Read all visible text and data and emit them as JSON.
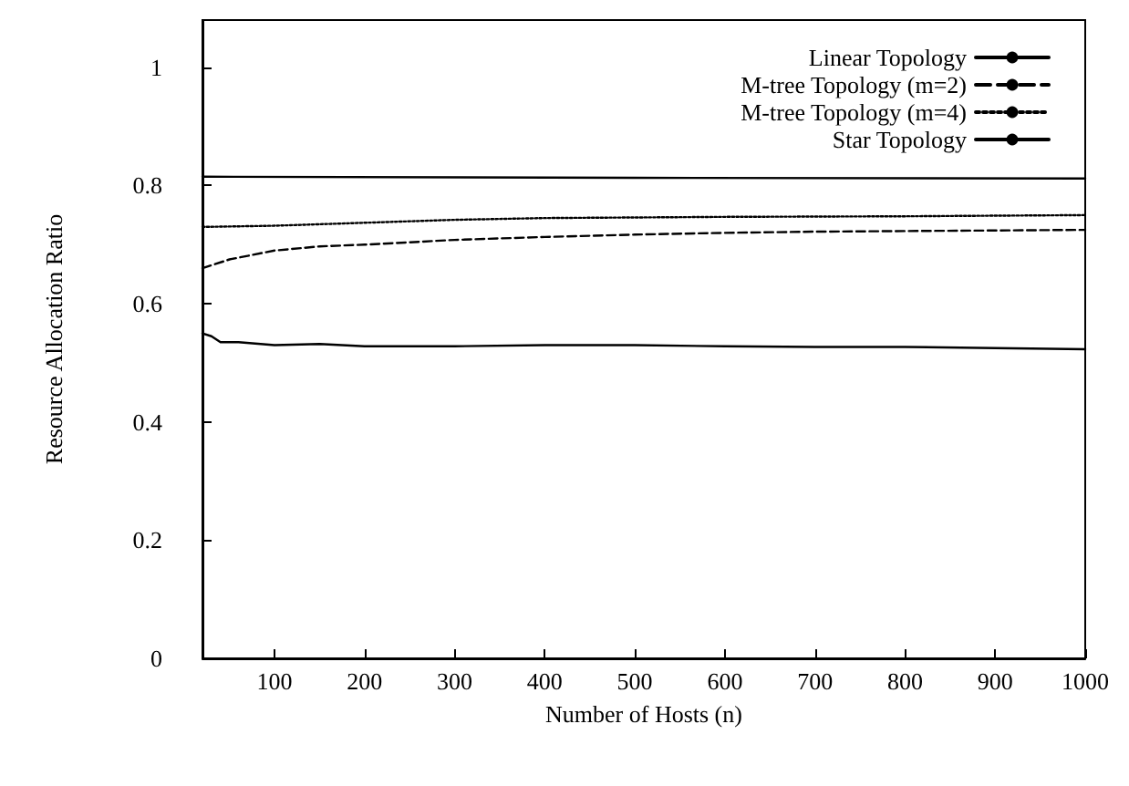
{
  "chart_data": {
    "type": "line",
    "xlabel": "Number of Hosts (n)",
    "ylabel": "Resource Allocation Ratio",
    "xlim": [
      20,
      1000
    ],
    "xticks": [
      100,
      200,
      300,
      400,
      500,
      600,
      700,
      800,
      900,
      1000
    ],
    "ylim": [
      0,
      1.08
    ],
    "yticks": [
      0,
      0.2,
      0.4,
      0.6,
      0.8,
      1
    ],
    "grid": false,
    "legend": "top right",
    "marker": "none",
    "series": [
      {
        "name": "Linear Topology",
        "color": "#000000",
        "line_style": "solid",
        "x": [
          20,
          30,
          40,
          60,
          100,
          150,
          200,
          300,
          400,
          500,
          600,
          700,
          800,
          900,
          1000
        ],
        "values": [
          0.55,
          0.545,
          0.535,
          0.535,
          0.53,
          0.532,
          0.528,
          0.528,
          0.53,
          0.53,
          0.528,
          0.527,
          0.527,
          0.525,
          0.523
        ]
      },
      {
        "name": "M-tree Topology (m=2)",
        "color": "#000000",
        "line_style": "dashed",
        "x": [
          20,
          50,
          100,
          150,
          200,
          300,
          400,
          500,
          600,
          700,
          800,
          1000
        ],
        "values": [
          0.66,
          0.675,
          0.69,
          0.697,
          0.7,
          0.708,
          0.713,
          0.717,
          0.72,
          0.722,
          0.723,
          0.725
        ]
      },
      {
        "name": "M-tree Topology (m=4)",
        "color": "#000000",
        "line_style": "dotted",
        "x": [
          20,
          100,
          200,
          300,
          400,
          500,
          600,
          800,
          1000
        ],
        "values": [
          0.73,
          0.732,
          0.737,
          0.742,
          0.745,
          0.746,
          0.747,
          0.748,
          0.75
        ]
      },
      {
        "name": "Star Topology",
        "color": "#000000",
        "line_style": "solid",
        "x": [
          20,
          500,
          1000
        ],
        "values": [
          0.815,
          0.813,
          0.812
        ]
      }
    ]
  }
}
